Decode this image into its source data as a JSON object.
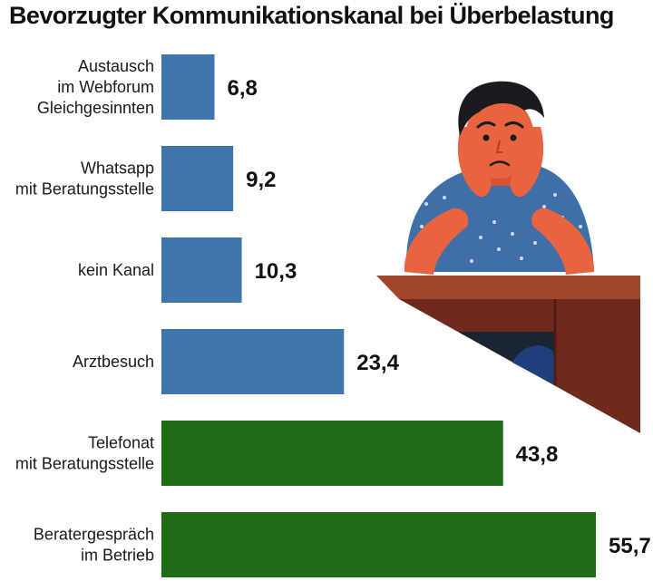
{
  "chart_data": {
    "type": "bar",
    "orientation": "horizontal",
    "title": "Bevorzugter Kommunikationskanal bei Überbelastung",
    "categories": [
      [
        "Austausch",
        "im Webforum",
        "Gleichgesinnten"
      ],
      [
        "Whatsapp",
        "mit Beratungsstelle"
      ],
      [
        "kein Kanal"
      ],
      [
        "Arztbesuch"
      ],
      [
        "Telefonat",
        "mit Beratungsstelle"
      ],
      [
        "Beratergespräch",
        "im Betrieb"
      ]
    ],
    "values": [
      6.8,
      9.2,
      10.3,
      23.4,
      43.8,
      55.7
    ],
    "value_labels": [
      "6,8",
      "9,2",
      "10,3",
      "23,4",
      "43,8",
      "55,7"
    ],
    "bar_colors": [
      "#3f75ad",
      "#3f75ad",
      "#3f75ad",
      "#3f75ad",
      "#1f6b17",
      "#1f6b17"
    ],
    "xlim": [
      0,
      60
    ],
    "grid": false,
    "legend": "none"
  },
  "illustration": {
    "name": "worried-man-at-desk-illustration",
    "colors": {
      "hair": "#1b1b1f",
      "skin": "#e8643f",
      "shirt": "#3f6fa8",
      "shirt_dots": "#cfdbea",
      "desk_top": "#a0472b",
      "desk_front": "#6f2a1b",
      "desk_inner": "#1b2433",
      "chair": "#1f3f7a"
    }
  }
}
